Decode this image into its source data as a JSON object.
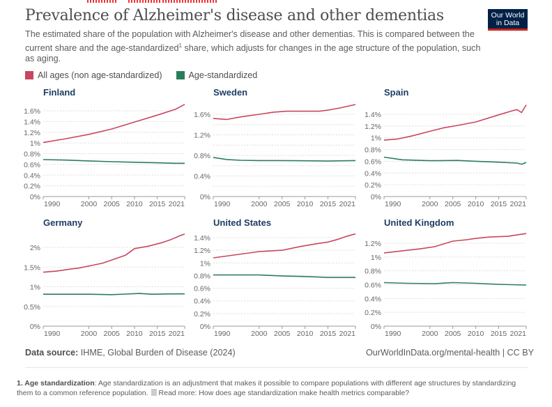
{
  "header": {
    "title": "Prevalence of Alzheimer's disease and other dementias",
    "subtitle_part1": "The estimated share of the population with Alzheimer's disease and other dementias. This is compared between the current share and the age-standardized",
    "subtitle_sup": "1",
    "subtitle_part2": " share, which adjusts for changes in the age structure of the population, such as aging.",
    "logo_line1": "Our World",
    "logo_line2": "in Data"
  },
  "colors": {
    "all_ages": "#c8465e",
    "age_standardized": "#2a7d5c",
    "logo_bg": "#002147",
    "logo_accent": "#ce261e",
    "facet_title": "#1d3d63"
  },
  "legend": [
    {
      "label": "All ages (non age-standardized)",
      "color": "#c8465e"
    },
    {
      "label": "Age-standardized",
      "color": "#2a7d5c"
    }
  ],
  "chart_data": [
    {
      "type": "line",
      "title": "Finland",
      "xlabel": "",
      "ylabel": "",
      "xlim": [
        1990,
        2021
      ],
      "ylim": [
        0,
        1.6
      ],
      "x_ticks": [
        "1990",
        "2000",
        "2005",
        "2010",
        "2015",
        "2021"
      ],
      "y_ticks": [
        0,
        0.2,
        0.4,
        0.6,
        0.8,
        1.0,
        1.2,
        1.4,
        1.6
      ],
      "y_tick_labels": [
        "0%",
        "0.2%",
        "0.4%",
        "0.6%",
        "0.8%",
        "1%",
        "1.2%",
        "1.4%",
        "1.6%"
      ],
      "y_grid": [
        0.2,
        0.4,
        0.6,
        0.8,
        1.0,
        1.2,
        1.4,
        1.6
      ],
      "series": [
        {
          "name": "All ages (non age-standardized)",
          "x": [
            1990,
            1995,
            2000,
            2005,
            2010,
            2015,
            2019,
            2021
          ],
          "values": [
            1.01,
            1.08,
            1.16,
            1.26,
            1.39,
            1.52,
            1.63,
            1.72
          ]
        },
        {
          "name": "Age-standardized",
          "x": [
            1990,
            1995,
            2000,
            2005,
            2010,
            2015,
            2019,
            2021
          ],
          "values": [
            0.69,
            0.68,
            0.665,
            0.65,
            0.64,
            0.63,
            0.62,
            0.62
          ]
        }
      ]
    },
    {
      "type": "line",
      "title": "Sweden",
      "xlabel": "",
      "ylabel": "",
      "xlim": [
        1990,
        2021
      ],
      "ylim": [
        0,
        1.6
      ],
      "x_ticks": [
        "1990",
        "2000",
        "2005",
        "2010",
        "2015",
        "2021"
      ],
      "y_ticks": [
        0,
        0.4,
        0.8,
        1.2,
        1.6
      ],
      "y_tick_labels": [
        "0%",
        "0.4%",
        "0.8%",
        "1.2%",
        "1.6%"
      ],
      "y_grid": [
        0.2,
        0.4,
        0.6,
        0.8,
        1.0,
        1.2,
        1.4,
        1.6
      ],
      "series": [
        {
          "name": "All ages (non age-standardized)",
          "x": [
            1990,
            1993,
            1996,
            2000,
            2003,
            2006,
            2010,
            2013,
            2015,
            2018,
            2021
          ],
          "values": [
            1.52,
            1.5,
            1.55,
            1.6,
            1.64,
            1.66,
            1.66,
            1.66,
            1.68,
            1.73,
            1.79
          ]
        },
        {
          "name": "Age-standardized",
          "x": [
            1990,
            1993,
            1996,
            2000,
            2005,
            2010,
            2015,
            2021
          ],
          "values": [
            0.76,
            0.72,
            0.705,
            0.7,
            0.7,
            0.695,
            0.69,
            0.7
          ]
        }
      ]
    },
    {
      "type": "line",
      "title": "Spain",
      "xlabel": "",
      "ylabel": "",
      "xlim": [
        1990,
        2021
      ],
      "ylim": [
        0,
        1.4
      ],
      "x_ticks": [
        "1990",
        "2000",
        "2005",
        "2010",
        "2015",
        "2021"
      ],
      "y_ticks": [
        0,
        0.2,
        0.4,
        0.6,
        0.8,
        1.0,
        1.2,
        1.4
      ],
      "y_tick_labels": [
        "0%",
        "0.2%",
        "0.4%",
        "0.6%",
        "0.8%",
        "1%",
        "1.2%",
        "1.4%"
      ],
      "y_grid": [
        0.2,
        0.4,
        0.6,
        0.8,
        1.0,
        1.2,
        1.4
      ],
      "series": [
        {
          "name": "All ages (non age-standardized)",
          "x": [
            1990,
            1993,
            1996,
            2000,
            2003,
            2006,
            2010,
            2015,
            2018,
            2019,
            2020,
            2021
          ],
          "values": [
            0.96,
            0.98,
            1.03,
            1.11,
            1.17,
            1.21,
            1.27,
            1.39,
            1.46,
            1.48,
            1.43,
            1.56
          ]
        },
        {
          "name": "Age-standardized",
          "x": [
            1990,
            1994,
            2000,
            2006,
            2010,
            2015,
            2019,
            2020,
            2021
          ],
          "values": [
            0.67,
            0.625,
            0.61,
            0.615,
            0.6,
            0.585,
            0.57,
            0.55,
            0.58
          ]
        }
      ]
    },
    {
      "type": "line",
      "title": "Germany",
      "xlabel": "",
      "ylabel": "",
      "xlim": [
        1990,
        2021
      ],
      "ylim": [
        0,
        2.0
      ],
      "x_ticks": [
        "1990",
        "2000",
        "2005",
        "2010",
        "2015",
        "2021"
      ],
      "y_ticks": [
        0,
        0.5,
        1.0,
        1.5,
        2.0
      ],
      "y_tick_labels": [
        "0%",
        "0.5%",
        "1%",
        "1.5%",
        "2%"
      ],
      "y_grid": [
        0.5,
        1.0,
        1.5,
        2.0
      ],
      "series": [
        {
          "name": "All ages (non age-standardized)",
          "x": [
            1990,
            1993,
            1996,
            1998,
            2001,
            2003,
            2005,
            2008,
            2010,
            2013,
            2016,
            2018,
            2020,
            2021
          ],
          "values": [
            1.37,
            1.4,
            1.45,
            1.48,
            1.55,
            1.6,
            1.68,
            1.8,
            1.97,
            2.03,
            2.12,
            2.2,
            2.3,
            2.34
          ]
        },
        {
          "name": "Age-standardized",
          "x": [
            1990,
            1995,
            2000,
            2005,
            2008,
            2011,
            2014,
            2018,
            2021
          ],
          "values": [
            0.81,
            0.81,
            0.81,
            0.8,
            0.815,
            0.83,
            0.81,
            0.82,
            0.82
          ]
        }
      ]
    },
    {
      "type": "line",
      "title": "United States",
      "xlabel": "",
      "ylabel": "",
      "xlim": [
        1990,
        2021
      ],
      "ylim": [
        0,
        1.4
      ],
      "x_ticks": [
        "1990",
        "2000",
        "2005",
        "2010",
        "2015",
        "2021"
      ],
      "y_ticks": [
        0,
        0.2,
        0.4,
        0.6,
        0.8,
        1.0,
        1.2,
        1.4
      ],
      "y_tick_labels": [
        "0%",
        "0.2%",
        "0.4%",
        "0.6%",
        "0.8%",
        "1%",
        "1.2%",
        "1.4%"
      ],
      "y_grid": [
        0.2,
        0.4,
        0.6,
        0.8,
        1.0,
        1.2,
        1.4
      ],
      "series": [
        {
          "name": "All ages (non age-standardized)",
          "x": [
            1990,
            1995,
            2000,
            2005,
            2009,
            2013,
            2015,
            2017,
            2019,
            2021
          ],
          "values": [
            1.08,
            1.13,
            1.18,
            1.2,
            1.26,
            1.31,
            1.33,
            1.37,
            1.42,
            1.46
          ]
        },
        {
          "name": "Age-standardized",
          "x": [
            1990,
            1995,
            2000,
            2005,
            2010,
            2015,
            2018,
            2021
          ],
          "values": [
            0.81,
            0.81,
            0.81,
            0.795,
            0.785,
            0.77,
            0.77,
            0.77
          ]
        }
      ]
    },
    {
      "type": "line",
      "title": "United Kingdom",
      "xlabel": "",
      "ylabel": "",
      "xlim": [
        1990,
        2021
      ],
      "ylim": [
        0,
        1.2
      ],
      "x_ticks": [
        "1990",
        "2000",
        "2005",
        "2010",
        "2015",
        "2021"
      ],
      "y_ticks": [
        0,
        0.2,
        0.4,
        0.6,
        0.8,
        1.0,
        1.2
      ],
      "y_tick_labels": [
        "0%",
        "0.2%",
        "0.4%",
        "0.6%",
        "0.8%",
        "1%",
        "1.2%"
      ],
      "y_grid": [
        0.2,
        0.4,
        0.6,
        0.8,
        1.0,
        1.2
      ],
      "series": [
        {
          "name": "All ages (non age-standardized)",
          "x": [
            1990,
            1994,
            1998,
            2001,
            2003,
            2005,
            2008,
            2010,
            2013,
            2017,
            2019,
            2021
          ],
          "values": [
            1.06,
            1.09,
            1.12,
            1.15,
            1.19,
            1.23,
            1.25,
            1.27,
            1.29,
            1.3,
            1.32,
            1.34
          ]
        },
        {
          "name": "Age-standardized",
          "x": [
            1990,
            1995,
            2001,
            2005,
            2010,
            2015,
            2021
          ],
          "values": [
            0.63,
            0.62,
            0.615,
            0.63,
            0.62,
            0.605,
            0.595
          ]
        }
      ]
    }
  ],
  "footer": {
    "source_label": "Data source:",
    "source_text": " IHME, Global Burden of Disease (2024)",
    "url": "OurWorldInData.org/mental-health",
    "license": " | CC BY",
    "note_label": "1. Age standardization",
    "note_text": ": Age standardization is an adjustment that makes it possible to compare populations with different age structures by standardizing them to a common reference population.",
    "note_link": "Read more: How does age standardization make health metrics comparable?"
  }
}
